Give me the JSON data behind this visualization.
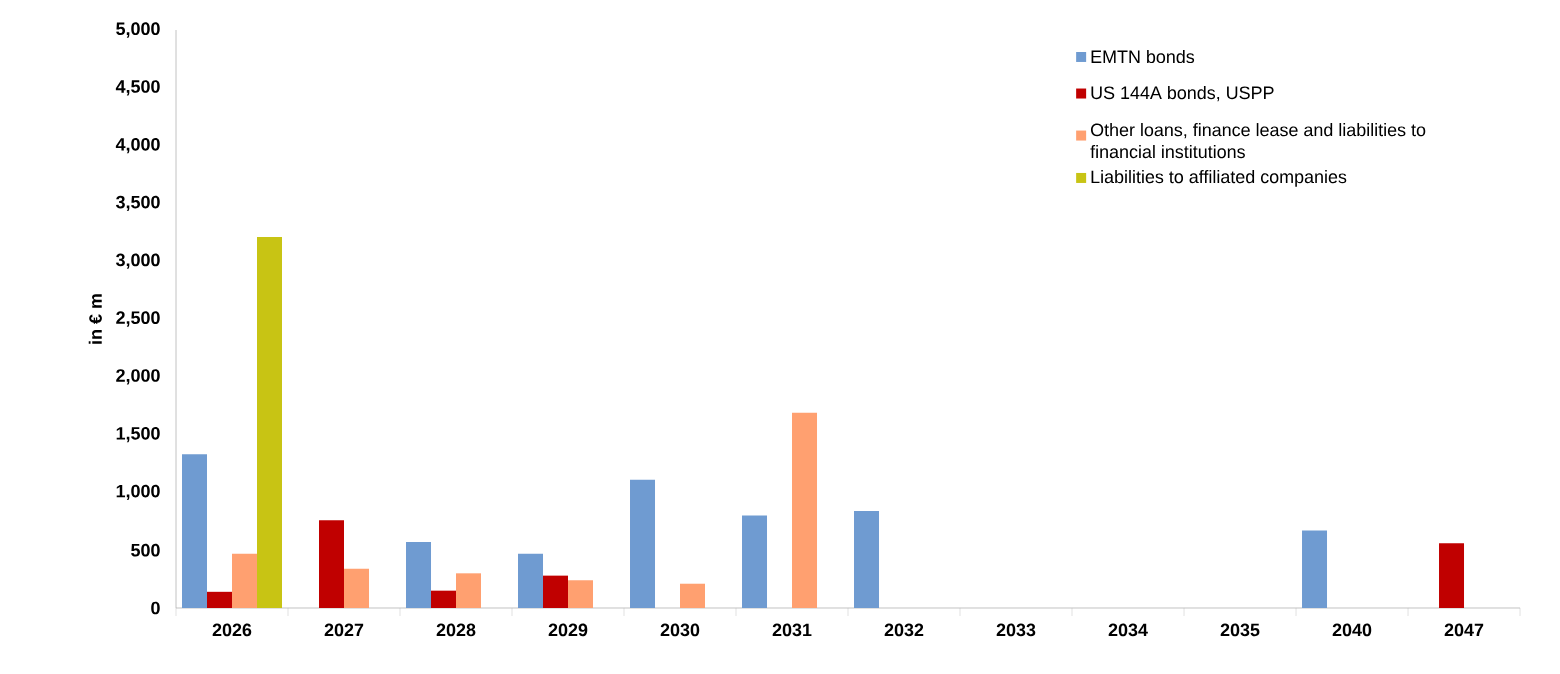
{
  "chart_data": {
    "type": "bar",
    "ylabel": "in € m",
    "categories": [
      "2026",
      "2027",
      "2028",
      "2029",
      "2030",
      "2031",
      "2032",
      "2033",
      "2034",
      "2035",
      "2040",
      "2047"
    ],
    "series": [
      {
        "name": "EMTN bonds",
        "color": "#6f9bd1",
        "values": [
          1330,
          null,
          570,
          470,
          1110,
          800,
          840,
          null,
          null,
          null,
          670,
          null
        ]
      },
      {
        "name": "US 144A bonds, USPP",
        "color": "#c00000",
        "values": [
          140,
          760,
          150,
          280,
          null,
          null,
          null,
          null,
          null,
          null,
          null,
          560
        ]
      },
      {
        "name": "Other loans, finance lease and liabilities to financial institutions",
        "color": "#ffa070",
        "values": [
          470,
          340,
          300,
          240,
          210,
          1690,
          null,
          null,
          null,
          null,
          null,
          null
        ]
      },
      {
        "name": "Liabilities to affiliated companies",
        "color": "#c8c414",
        "values": [
          3210,
          null,
          null,
          null,
          null,
          null,
          null,
          null,
          null,
          null,
          null,
          null
        ]
      }
    ],
    "ylim": [
      0,
      5000
    ],
    "yticks": [
      0,
      500,
      {
        "value": 1000,
        "label": "1,000"
      },
      {
        "value": 1500,
        "label": "1,500"
      },
      {
        "value": 2000,
        "label": "2,000"
      },
      {
        "value": 2500,
        "label": "2,500"
      },
      {
        "value": 3000,
        "label": "3,000"
      },
      {
        "value": 3500,
        "label": "3,500"
      },
      {
        "value": 4000,
        "label": "4,000"
      },
      {
        "value": 4500,
        "label": "4,500"
      },
      {
        "value": 5000,
        "label": "5,000"
      }
    ],
    "grid": false,
    "legend": "top right"
  }
}
